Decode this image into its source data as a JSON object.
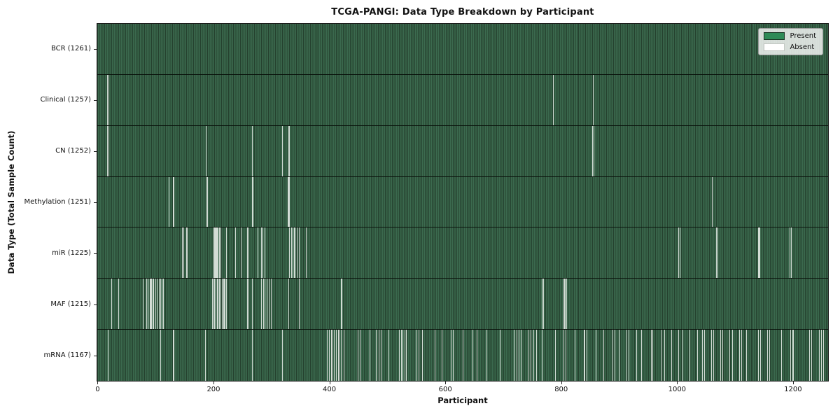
{
  "title": "TCGA-PANGI: Data Type Breakdown by Participant",
  "colors": {
    "present": "#2e8b57",
    "absent": "#ffffff",
    "bar_edge_dark": "#24402e",
    "bar_fill_light": "#3c6b4f",
    "absent_line": "#eef3ee",
    "axis": "#1b1b1b"
  },
  "chart_data": {
    "type": "heatmap",
    "title": "TCGA-PANGI: Data Type Breakdown by Participant",
    "xlabel": "Participant",
    "ylabel": "Data Type (Total Sample Count)",
    "x_ticks": [
      0,
      200,
      400,
      600,
      800,
      1000,
      1200
    ],
    "xlim": [
      -0.5,
      1260.5
    ],
    "n_participants": 1261,
    "grid": false,
    "legend_position": "upper right",
    "legend_entries": [
      {
        "label": "Present",
        "color": "#2e8b57",
        "edge": "#1d3a28"
      },
      {
        "label": "Absent",
        "color": "#ffffff",
        "edge": "#c2c7c2"
      }
    ],
    "rows": [
      {
        "data_type": "BCR",
        "label": "BCR (1261)",
        "total_samples": 1261,
        "absent_indices": []
      },
      {
        "data_type": "Clinical",
        "label": "Clinical (1257)",
        "total_samples": 1257,
        "absent_indices": [
          17,
          19,
          786,
          855
        ]
      },
      {
        "data_type": "CN",
        "label": "CN (1252)",
        "total_samples": 1252,
        "absent_indices": [
          17,
          19,
          187,
          267,
          319,
          330,
          331,
          854,
          856
        ]
      },
      {
        "data_type": "Methylation",
        "label": "Methylation (1251)",
        "total_samples": 1251,
        "absent_indices": [
          123,
          131,
          188,
          190,
          267,
          268,
          329,
          330,
          331,
          1060
        ]
      },
      {
        "data_type": "miR",
        "label": "miR (1225)",
        "total_samples": 1225,
        "absent_indices": [
          146,
          149,
          154,
          200,
          202,
          203,
          204,
          205,
          206,
          208,
          210,
          212,
          213,
          222,
          238,
          248,
          259,
          276,
          283,
          285,
          289,
          331,
          334,
          337,
          340,
          344,
          348,
          360,
          1003,
          1005,
          1068,
          1070,
          1140,
          1142,
          1195,
          1197
        ]
      },
      {
        "data_type": "MAF",
        "label": "MAF (1215)",
        "total_samples": 1215,
        "absent_indices": [
          24,
          36,
          78,
          85,
          87,
          90,
          92,
          93,
          95,
          97,
          100,
          103,
          106,
          109,
          111,
          114,
          198,
          200,
          202,
          204,
          206,
          208,
          210,
          212,
          215,
          218,
          220,
          222,
          259,
          267,
          283,
          286,
          289,
          292,
          296,
          300,
          330,
          348,
          420,
          422,
          767,
          769,
          804,
          806,
          807,
          809
        ]
      },
      {
        "data_type": "mRNA",
        "label": "mRNA (1167)",
        "total_samples": 1167,
        "absent_indices": [
          18,
          109,
          131,
          186,
          267,
          319,
          396,
          400,
          404,
          408,
          412,
          416,
          420,
          425,
          449,
          453,
          470,
          481,
          485,
          489,
          502,
          521,
          524,
          527,
          530,
          533,
          550,
          554,
          560,
          582,
          594,
          610,
          614,
          630,
          647,
          655,
          671,
          695,
          719,
          723,
          727,
          731,
          744,
          748,
          752,
          757,
          767,
          790,
          804,
          808,
          824,
          840,
          844,
          860,
          873,
          889,
          893,
          900,
          913,
          917,
          930,
          938,
          955,
          958,
          974,
          978,
          990,
          1003,
          1010,
          1022,
          1035,
          1043,
          1047,
          1059,
          1063,
          1075,
          1079,
          1091,
          1095,
          1107,
          1111,
          1120,
          1140,
          1144,
          1156,
          1160,
          1180,
          1196,
          1200,
          1228,
          1232,
          1245,
          1249,
          1253
        ]
      }
    ]
  }
}
